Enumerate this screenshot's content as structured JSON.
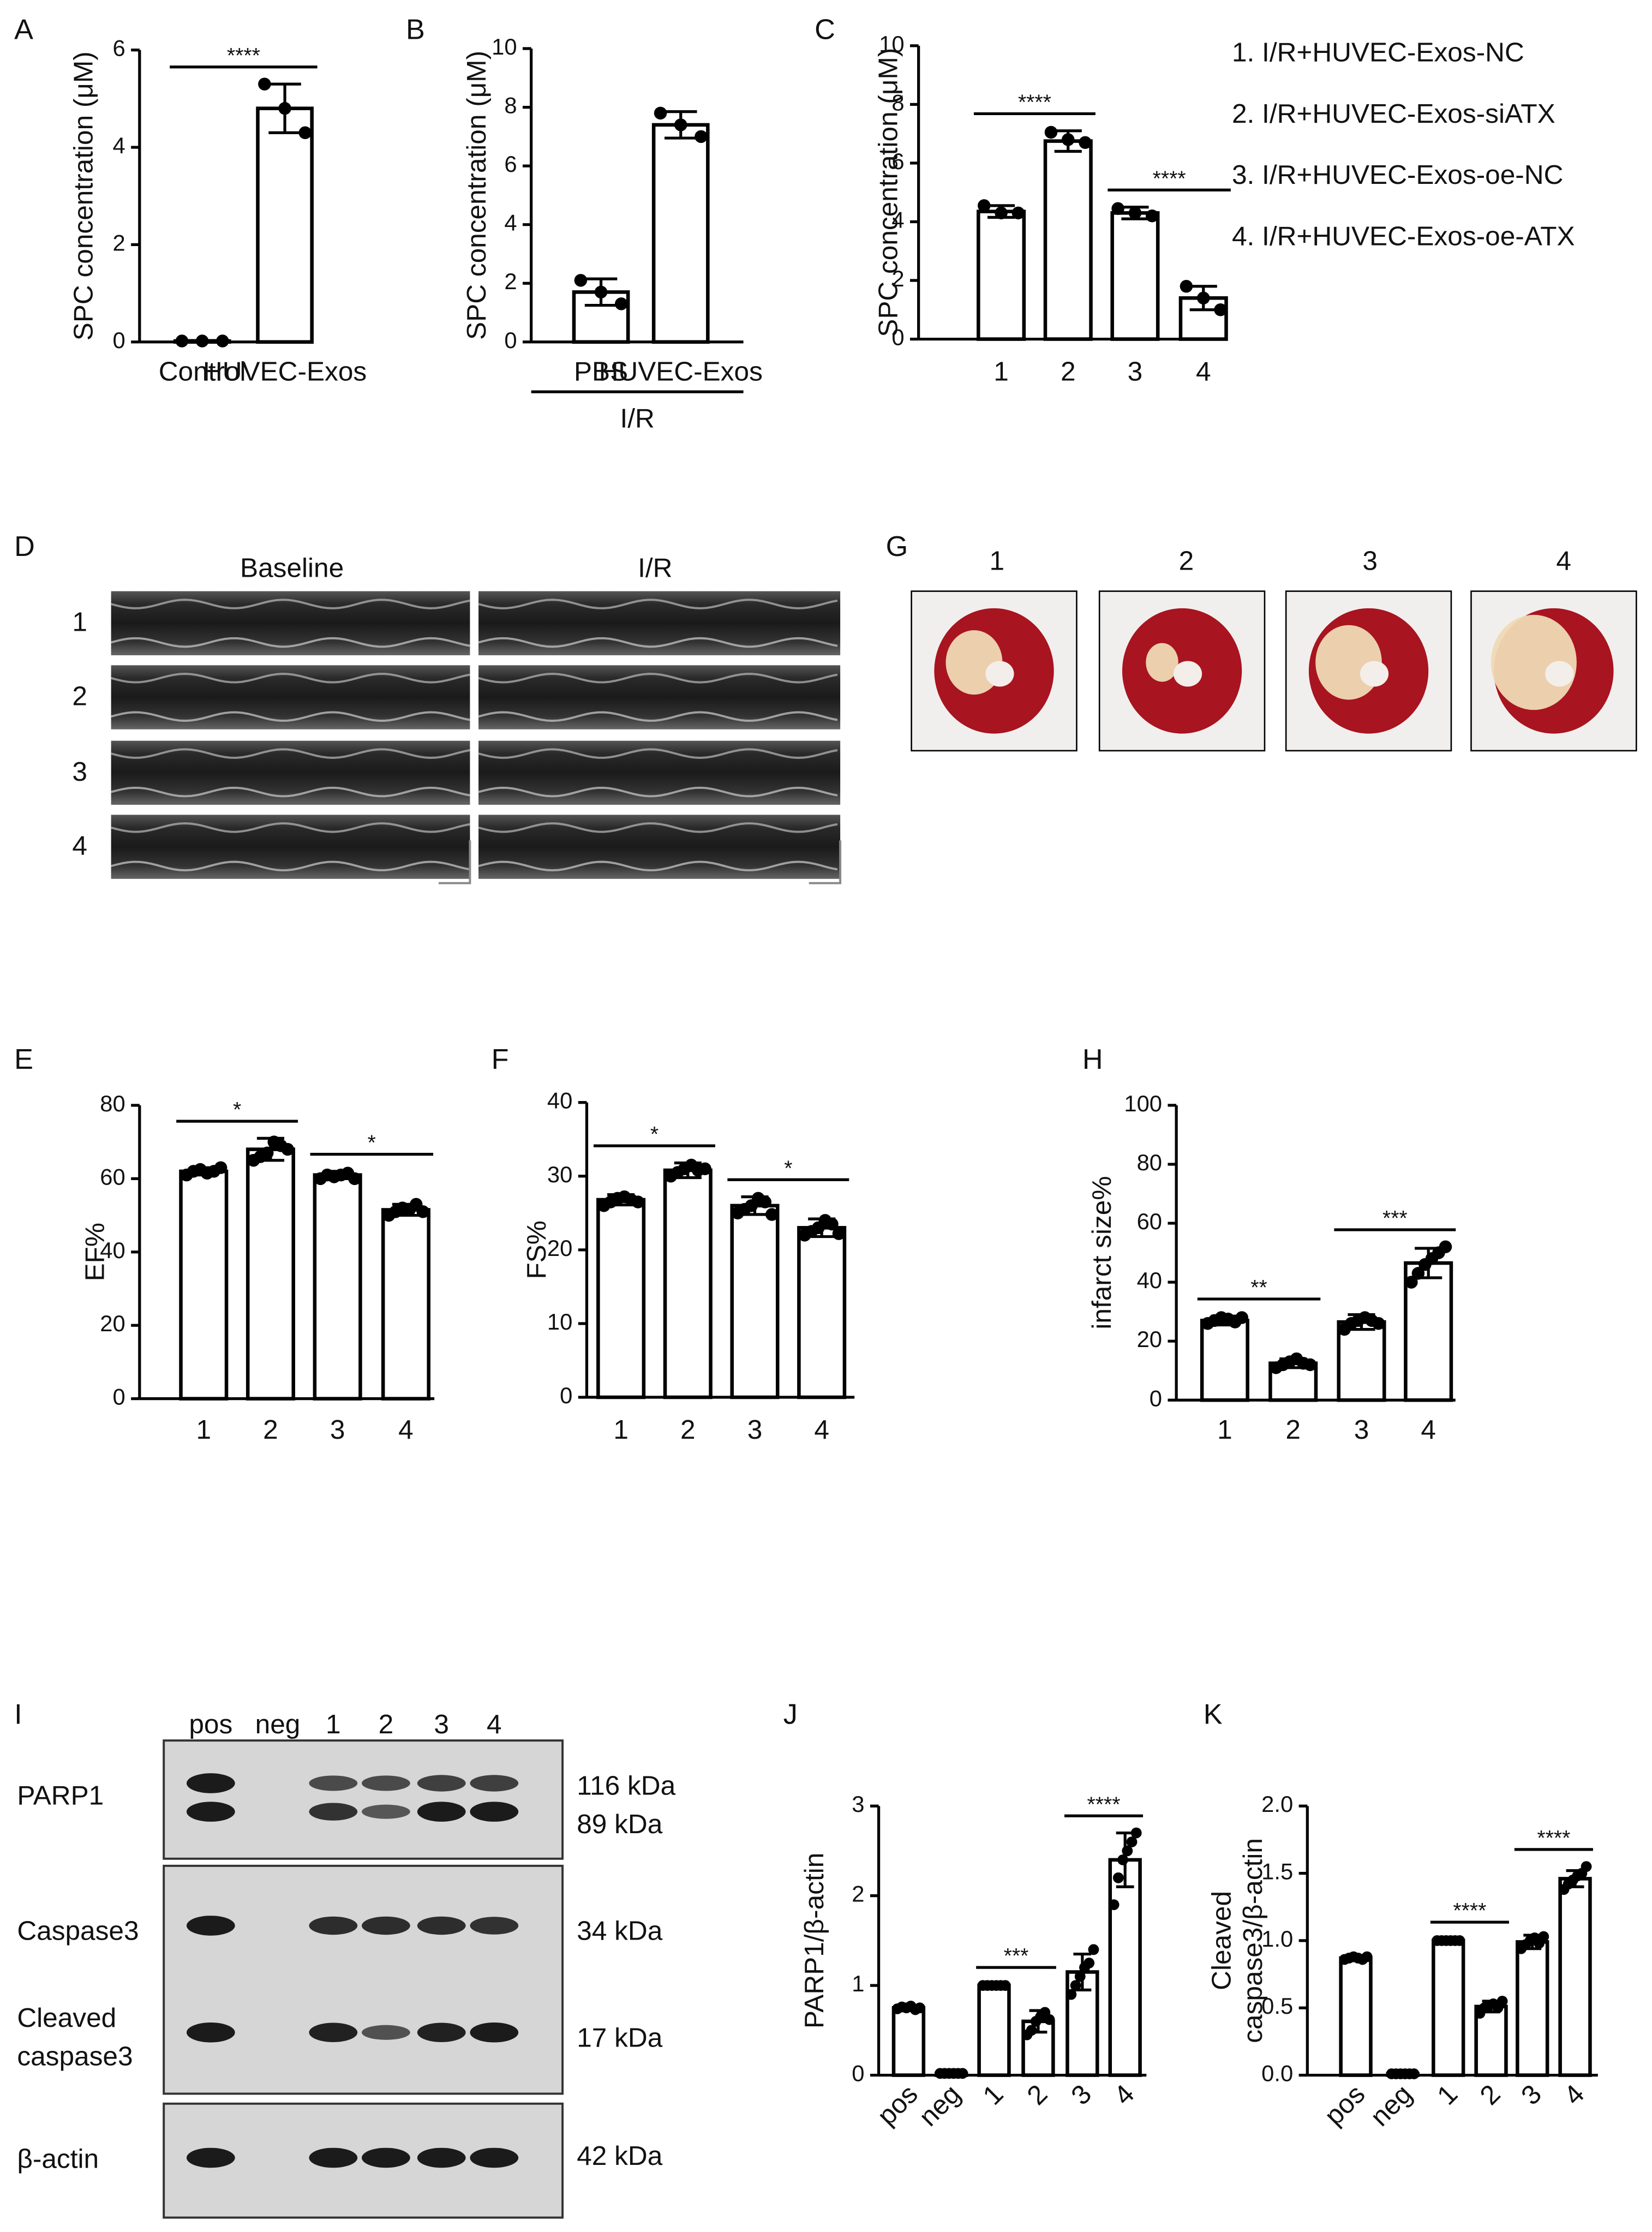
{
  "chart_data": [
    {
      "type": "bar",
      "panel": "A",
      "ylabel": "SPC concentration (μM)",
      "categories": [
        "Control",
        "HUVEC-Exos"
      ],
      "values": [
        0.02,
        4.8
      ],
      "errors": [
        0.01,
        0.5
      ],
      "points": [
        [
          0.02,
          0.02,
          0.02
        ],
        [
          5.3,
          4.8,
          4.3
        ]
      ],
      "ylim": [
        0,
        6
      ],
      "yticks": [
        0,
        2,
        4,
        6
      ],
      "significance": [
        {
          "from": 0,
          "to": 1,
          "label": "****"
        }
      ],
      "color": "#ffffff"
    },
    {
      "type": "bar",
      "panel": "B",
      "ylabel": "SPC concentration (μM)",
      "categories": [
        "PBS",
        "HUVEC-Exos"
      ],
      "group_label": "I/R",
      "values": [
        1.7,
        7.4
      ],
      "errors": [
        0.45,
        0.45
      ],
      "points": [
        [
          2.1,
          1.7,
          1.3
        ],
        [
          7.8,
          7.4,
          7.0
        ]
      ],
      "ylim": [
        0,
        10
      ],
      "yticks": [
        0,
        2,
        4,
        6,
        8,
        10
      ],
      "color": "#ffffff"
    },
    {
      "type": "bar",
      "panel": "C",
      "ylabel": "SPC concentration (μM)",
      "categories": [
        "1",
        "2",
        "3",
        "4"
      ],
      "values": [
        4.35,
        6.75,
        4.3,
        1.4
      ],
      "errors": [
        0.2,
        0.35,
        0.2,
        0.4
      ],
      "points": [
        [
          4.55,
          4.3,
          4.3
        ],
        [
          7.05,
          6.8,
          6.7
        ],
        [
          4.45,
          4.3,
          4.2
        ],
        [
          1.8,
          1.4,
          1.0
        ]
      ],
      "ylim": [
        0,
        10
      ],
      "yticks": [
        0,
        2,
        4,
        6,
        8,
        10
      ],
      "significance": [
        {
          "from": 0,
          "to": 1,
          "label": "****"
        },
        {
          "from": 2,
          "to": 3,
          "label": "****"
        }
      ],
      "notes": [
        "1. I/R+HUVEC-Exos-NC",
        "2. I/R+HUVEC-Exos-siATX",
        "3. I/R+HUVEC-Exos-oe-NC",
        "4. I/R+HUVEC-Exos-oe-ATX"
      ],
      "color": "#ffffff"
    },
    {
      "type": "bar",
      "panel": "E",
      "ylabel": "EF%",
      "categories": [
        "1",
        "2",
        "3",
        "4"
      ],
      "values": [
        62,
        68,
        61,
        51.5
      ],
      "errors": [
        1,
        3,
        1,
        1.5
      ],
      "points": [
        [
          61,
          62,
          62.5,
          61.5,
          62,
          63
        ],
        [
          65,
          66,
          67,
          70,
          69,
          68
        ],
        [
          60,
          61,
          60.5,
          61,
          61.5,
          60
        ],
        [
          50,
          51,
          52,
          51.5,
          53,
          51
        ]
      ],
      "ylim": [
        0,
        80
      ],
      "yticks": [
        0,
        20,
        40,
        60,
        80
      ],
      "significance": [
        {
          "from": 0,
          "to": 1,
          "label": "*"
        },
        {
          "from": 2,
          "to": 3,
          "label": "*"
        }
      ],
      "color": "#ffffff"
    },
    {
      "type": "bar",
      "panel": "F",
      "ylabel": "FS%",
      "categories": [
        "1",
        "2",
        "3",
        "4"
      ],
      "values": [
        26.8,
        30.8,
        26,
        23
      ],
      "errors": [
        0.7,
        1,
        1.2,
        1.2
      ],
      "points": [
        [
          26,
          26.5,
          27,
          27.2,
          26.8,
          26.5
        ],
        [
          30,
          30.5,
          31,
          31.5,
          30.8,
          31
        ],
        [
          25,
          25.5,
          26,
          27,
          26.5,
          24.8
        ],
        [
          22,
          22.5,
          23,
          24,
          23.5,
          22.2
        ]
      ],
      "ylim": [
        0,
        40
      ],
      "yticks": [
        0,
        10,
        20,
        30,
        40
      ],
      "significance": [
        {
          "from": 0,
          "to": 1,
          "label": "*"
        },
        {
          "from": 2,
          "to": 3,
          "label": "*"
        }
      ],
      "color": "#ffffff"
    },
    {
      "type": "bar",
      "panel": "H",
      "ylabel": "infarct size%",
      "categories": [
        "1",
        "2",
        "3",
        "4"
      ],
      "values": [
        27,
        12.5,
        26.5,
        46.5
      ],
      "errors": [
        1.5,
        1.5,
        2.5,
        5
      ],
      "points": [
        [
          26,
          27,
          28,
          27.5,
          26.5,
          28
        ],
        [
          11,
          12,
          13,
          14,
          12.5,
          12
        ],
        [
          24,
          26,
          27,
          28,
          27,
          26
        ],
        [
          40,
          43,
          46,
          48,
          50,
          52
        ]
      ],
      "ylim": [
        0,
        100
      ],
      "yticks": [
        0,
        20,
        40,
        60,
        80,
        100
      ],
      "significance": [
        {
          "from": 0,
          "to": 1,
          "label": "**"
        },
        {
          "from": 2,
          "to": 3,
          "label": "***"
        }
      ],
      "color": "#ffffff"
    },
    {
      "type": "bar",
      "panel": "J",
      "ylabel": "PARP1/β-actin",
      "categories": [
        "pos",
        "neg",
        "1",
        "2",
        "3",
        "4"
      ],
      "values": [
        0.75,
        0.02,
        1.0,
        0.6,
        1.15,
        2.4
      ],
      "errors": [
        0.03,
        0.01,
        0.01,
        0.12,
        0.2,
        0.3
      ],
      "points": [
        [
          0.74,
          0.76,
          0.75,
          0.77,
          0.73,
          0.75
        ],
        [
          0.02,
          0.02,
          0.02,
          0.02,
          0.02,
          0.02
        ],
        [
          1,
          1,
          1,
          1,
          1,
          1
        ],
        [
          0.45,
          0.5,
          0.6,
          0.65,
          0.7,
          0.62
        ],
        [
          0.9,
          1.0,
          1.1,
          1.2,
          1.25,
          1.4
        ],
        [
          1.9,
          2.2,
          2.4,
          2.5,
          2.6,
          2.7
        ]
      ],
      "ylim": [
        0,
        3
      ],
      "yticks": [
        0,
        1,
        2,
        3
      ],
      "significance": [
        {
          "from": 2,
          "to": 3,
          "label": "***"
        },
        {
          "from": 4,
          "to": 5,
          "label": "****"
        }
      ],
      "color": "#ffffff"
    },
    {
      "type": "bar",
      "panel": "K",
      "ylabel": [
        "Cleaved",
        "caspase3/β-actin"
      ],
      "categories": [
        "pos",
        "neg",
        "1",
        "2",
        "3",
        "4"
      ],
      "values": [
        0.87,
        0.01,
        1.0,
        0.51,
        0.99,
        1.46
      ],
      "errors": [
        0.02,
        0.01,
        0.01,
        0.04,
        0.05,
        0.06
      ],
      "points": [
        [
          0.86,
          0.87,
          0.88,
          0.87,
          0.86,
          0.88
        ],
        [
          0.01,
          0.01,
          0.01,
          0.01,
          0.01,
          0.01
        ],
        [
          1,
          1,
          1,
          1,
          1,
          1
        ],
        [
          0.46,
          0.5,
          0.52,
          0.53,
          0.5,
          0.55
        ],
        [
          0.94,
          0.97,
          1,
          1.02,
          0.98,
          1.03
        ],
        [
          1.38,
          1.42,
          1.45,
          1.48,
          1.5,
          1.55
        ]
      ],
      "ylim": [
        0,
        2
      ],
      "yticks": [
        {
          "value": 0,
          "label": "0.0"
        },
        {
          "value": 0.5,
          "label": "0.5"
        },
        {
          "value": 1,
          "label": "1.0"
        },
        {
          "value": 1.5,
          "label": "1.5"
        },
        {
          "value": 2,
          "label": "2.0"
        }
      ],
      "significance": [
        {
          "from": 2,
          "to": 3,
          "label": "****"
        },
        {
          "from": 4,
          "to": 5,
          "label": "****"
        }
      ],
      "color": "#ffffff"
    }
  ],
  "echo": {
    "panel": "D",
    "columns": [
      "Baseline",
      "I/R"
    ],
    "rows": [
      "1",
      "2",
      "3",
      "4"
    ]
  },
  "ttc": {
    "panel": "G",
    "labels": [
      "1",
      "2",
      "3",
      "4"
    ]
  },
  "blot": {
    "panel": "I",
    "lanes": [
      "pos",
      "neg",
      "1",
      "2",
      "3",
      "4"
    ],
    "proteins": [
      "PARP1",
      "Caspase3",
      [
        "Cleaved",
        "caspase3"
      ],
      "β-actin"
    ],
    "sizes": [
      "116 kDa",
      "89 kDa",
      "34 kDa",
      "17 kDa",
      "42 kDa"
    ]
  }
}
